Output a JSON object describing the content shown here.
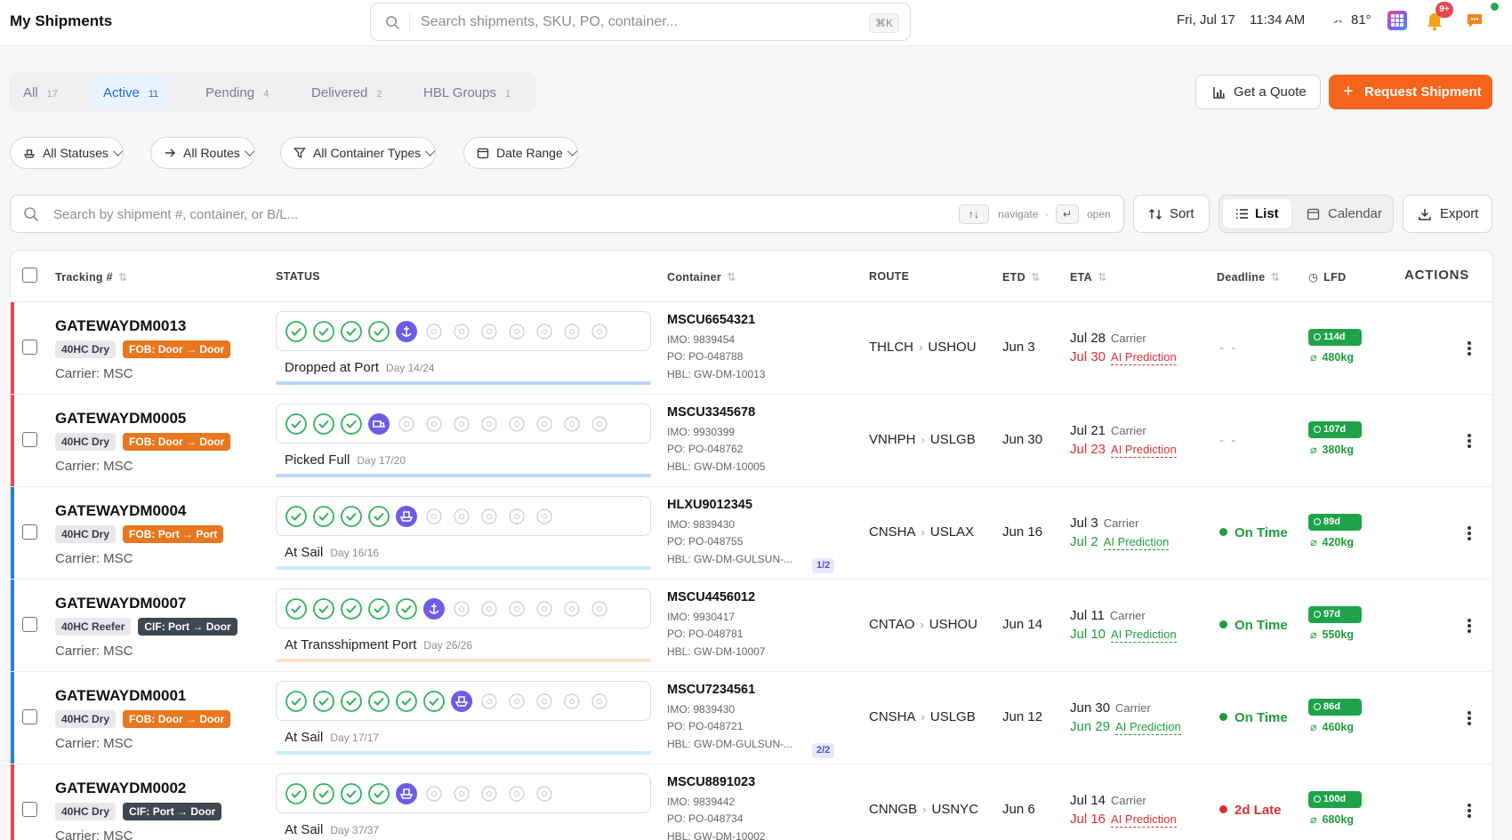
{
  "header": {
    "title": "My Shipments",
    "search_placeholder": "Search shipments, SKU, PO, container...",
    "search_shortcut": "⌘K",
    "date": "Fri, Jul 17",
    "time": "11:34 AM",
    "temperature": "81°",
    "notification_count": "9+"
  },
  "tabs": [
    {
      "label": "All",
      "count": "17"
    },
    {
      "label": "Active",
      "count": "11"
    },
    {
      "label": "Pending",
      "count": "4"
    },
    {
      "label": "Delivered",
      "count": "2"
    },
    {
      "label": "HBL Groups",
      "count": "1"
    }
  ],
  "active_tab": "Active",
  "actions": {
    "quote": "Get a Quote",
    "request": "Request Shipment"
  },
  "filters": [
    "All Statuses",
    "All Routes",
    "All Container Types",
    "Date Range"
  ],
  "list_search": {
    "placeholder": "Search by shipment #, container, or B/L...",
    "hint_navigate": "navigate",
    "hint_open": "open"
  },
  "toolbar": {
    "sort": "Sort",
    "list": "List",
    "calendar": "Calendar",
    "export": "Export"
  },
  "columns": {
    "tracking": "Tracking #",
    "status": "STATUS",
    "container": "Container",
    "route": "ROUTE",
    "etd": "ETD",
    "eta": "ETA",
    "deadline": "Deadline",
    "lfd": "LFD",
    "actions": "ACTIONS"
  },
  "colors": {
    "accent": "#1f6ad9",
    "brand_orange": "#f5641b",
    "late_red": "#d93036",
    "ok_green": "#1f9d3b",
    "step_done": "#2fb35a",
    "step_current": "#6c5ce7"
  },
  "shipments": [
    {
      "tracking": "GATEWAYDM0013",
      "container_type": "40HC Dry",
      "terms": "FOB: Door → Door",
      "terms_style": "fob",
      "carrier": "Carrier: MSC",
      "stripe": "#e5484d",
      "steps_done": 4,
      "current_icon": "anchor",
      "steps_total": 12,
      "status": "Dropped at Port",
      "day": "Day 14/24",
      "progress_color": "#bcd6f5",
      "container": "MSCU6654321",
      "imo": "IMO: 9839454",
      "po": "PO: PO-048788",
      "hbl": "HBL: GW-DM-10013",
      "hbl_badge": "",
      "origin": "THLCH",
      "dest": "USHOU",
      "etd": "Jun 3",
      "eta_carrier": "Jul 28",
      "eta_carrier_label": "Carrier",
      "eta_ai": "Jul 30",
      "eta_ai_label": "AI Prediction",
      "eta_ai_style": "red",
      "deadline": "- -",
      "deadline_style": "none",
      "lfd": "114d",
      "co2": "480kg"
    },
    {
      "tracking": "GATEWAYDM0005",
      "container_type": "40HC Dry",
      "terms": "FOB: Door → Door",
      "terms_style": "fob",
      "carrier": "Carrier: MSC",
      "stripe": "#e5484d",
      "steps_done": 3,
      "current_icon": "truck",
      "steps_total": 12,
      "status": "Picked Full",
      "day": "Day 17/20",
      "progress_color": "#bcd6f5",
      "container": "MSCU3345678",
      "imo": "IMO: 9930399",
      "po": "PO: PO-048762",
      "hbl": "HBL: GW-DM-10005",
      "hbl_badge": "",
      "origin": "VNHPH",
      "dest": "USLGB",
      "etd": "Jun 30",
      "eta_carrier": "Jul 21",
      "eta_carrier_label": "Carrier",
      "eta_ai": "Jul 23",
      "eta_ai_label": "AI Prediction",
      "eta_ai_style": "red",
      "deadline": "- -",
      "deadline_style": "none",
      "lfd": "107d",
      "co2": "380kg"
    },
    {
      "tracking": "GATEWAYDM0004",
      "container_type": "40HC Dry",
      "terms": "FOB: Port → Port",
      "terms_style": "fob",
      "carrier": "Carrier: MSC",
      "stripe": "#2f7de1",
      "steps_done": 4,
      "current_icon": "ship",
      "steps_total": 10,
      "status": "At Sail",
      "day": "Day 16/16",
      "progress_color": "#c9ecf7",
      "container": "HLXU9012345",
      "imo": "IMO: 9839430",
      "po": "PO: PO-048755",
      "hbl": "HBL: GW-DM-GULSUN-...",
      "hbl_badge": "1/2",
      "origin": "CNSHA",
      "dest": "USLAX",
      "etd": "Jun 16",
      "eta_carrier": "Jul 3",
      "eta_carrier_label": "Carrier",
      "eta_ai": "Jul 2",
      "eta_ai_label": "AI Prediction",
      "eta_ai_style": "green",
      "deadline": "On Time",
      "deadline_style": "ok",
      "lfd": "89d",
      "co2": "420kg"
    },
    {
      "tracking": "GATEWAYDM0007",
      "container_type": "40HC Reefer",
      "terms": "CIF: Port → Door",
      "terms_style": "cif",
      "carrier": "Carrier: MSC",
      "stripe": "#2f7de1",
      "steps_done": 5,
      "current_icon": "anchor",
      "steps_total": 12,
      "status": "At Transshipment Port",
      "day": "Day 26/26",
      "progress_color": "#fbe2c8",
      "container": "MSCU4456012",
      "imo": "IMO: 9930417",
      "po": "PO: PO-048781",
      "hbl": "HBL: GW-DM-10007",
      "hbl_badge": "",
      "origin": "CNTAO",
      "dest": "USHOU",
      "etd": "Jun 14",
      "eta_carrier": "Jul 11",
      "eta_carrier_label": "Carrier",
      "eta_ai": "Jul 10",
      "eta_ai_label": "AI Prediction",
      "eta_ai_style": "green",
      "deadline": "On Time",
      "deadline_style": "ok",
      "lfd": "97d",
      "co2": "550kg"
    },
    {
      "tracking": "GATEWAYDM0001",
      "container_type": "40HC Dry",
      "terms": "FOB: Door → Door",
      "terms_style": "fob",
      "carrier": "Carrier: MSC",
      "stripe": "#2f7de1",
      "steps_done": 6,
      "current_icon": "ship",
      "steps_total": 12,
      "status": "At Sail",
      "day": "Day 17/17",
      "progress_color": "#c9ecf7",
      "container": "MSCU7234561",
      "imo": "IMO: 9839430",
      "po": "PO: PO-048721",
      "hbl": "HBL: GW-DM-GULSUN-...",
      "hbl_badge": "2/2",
      "origin": "CNSHA",
      "dest": "USLGB",
      "etd": "Jun 12",
      "eta_carrier": "Jun 30",
      "eta_carrier_label": "Carrier",
      "eta_ai": "Jun 29",
      "eta_ai_label": "AI Prediction",
      "eta_ai_style": "green",
      "deadline": "On Time",
      "deadline_style": "ok",
      "lfd": "86d",
      "co2": "460kg"
    },
    {
      "tracking": "GATEWAYDM0002",
      "container_type": "40HC Dry",
      "terms": "CIF: Port → Door",
      "terms_style": "cif",
      "carrier": "Carrier: MSC",
      "stripe": "#e5484d",
      "steps_done": 4,
      "current_icon": "ship",
      "steps_total": 10,
      "status": "At Sail",
      "day": "Day 37/37",
      "progress_color": "#c9ecf7",
      "container": "MSCU8891023",
      "imo": "IMO: 9839442",
      "po": "PO: PO-048734",
      "hbl": "HBL: GW-DM-10002",
      "hbl_badge": "",
      "origin": "CNNGB",
      "dest": "USNYC",
      "etd": "Jun 6",
      "eta_carrier": "Jul 14",
      "eta_carrier_label": "Carrier",
      "eta_ai": "Jul 16",
      "eta_ai_label": "AI Prediction",
      "eta_ai_style": "red",
      "deadline": "2d Late",
      "deadline_style": "late",
      "lfd": "100d",
      "co2": "680kg"
    }
  ]
}
